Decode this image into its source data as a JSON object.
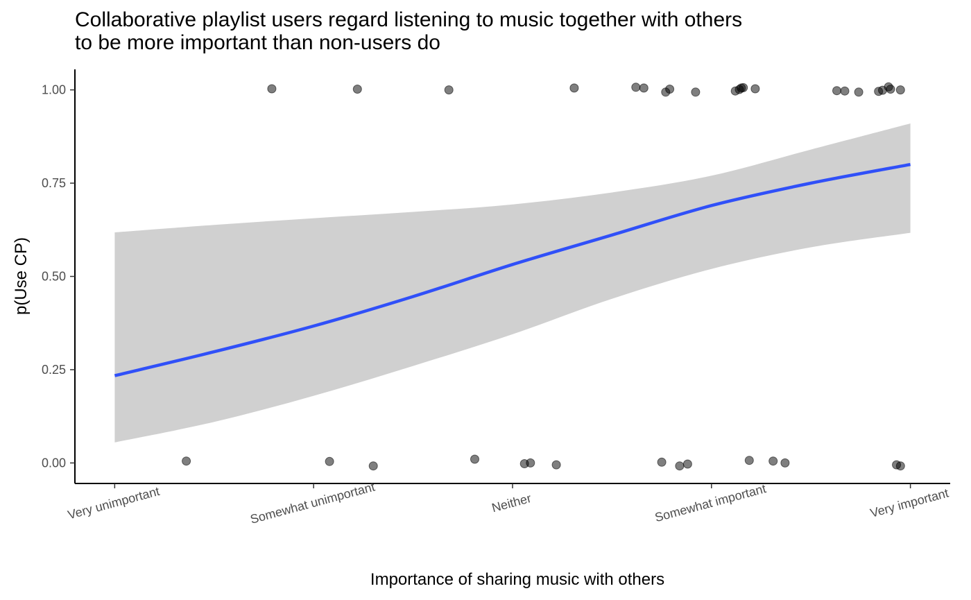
{
  "chart_data": {
    "type": "scatter",
    "title_line1": "Collaborative playlist users regard listening to music together with others",
    "title_line2": "to be more important than non-users do",
    "xlabel": "Importance of sharing music with others",
    "ylabel": "p(Use CP)",
    "x_categories": [
      "Very unimportant",
      "Somewhat unimportant",
      "Neither",
      "Somewhat important",
      "Very important"
    ],
    "y_ticks": [
      "0.00",
      "0.25",
      "0.50",
      "0.75",
      "1.00"
    ],
    "y_tick_values": [
      0,
      0.25,
      0.5,
      0.75,
      1
    ],
    "ylim": [
      -0.055,
      1.055
    ],
    "xlim": [
      0.8,
      5.2
    ],
    "grid": false,
    "legend": "none",
    "colors": {
      "fit_line": "#3050f8",
      "ribbon": "#d0d0d0",
      "points": "#000000",
      "axis": "#000000"
    },
    "points": [
      {
        "x": 1.79,
        "y": 1.003
      },
      {
        "x": 2.22,
        "y": 1.002
      },
      {
        "x": 2.68,
        "y": 1.0
      },
      {
        "x": 3.31,
        "y": 1.005
      },
      {
        "x": 3.62,
        "y": 1.007
      },
      {
        "x": 3.66,
        "y": 1.005
      },
      {
        "x": 3.77,
        "y": 0.994
      },
      {
        "x": 3.79,
        "y": 1.002
      },
      {
        "x": 3.92,
        "y": 0.994
      },
      {
        "x": 4.12,
        "y": 0.997
      },
      {
        "x": 4.14,
        "y": 1.001
      },
      {
        "x": 4.15,
        "y": 1.005
      },
      {
        "x": 4.16,
        "y": 1.006
      },
      {
        "x": 4.22,
        "y": 1.003
      },
      {
        "x": 4.63,
        "y": 0.998
      },
      {
        "x": 4.67,
        "y": 0.997
      },
      {
        "x": 4.74,
        "y": 0.994
      },
      {
        "x": 4.84,
        "y": 0.996
      },
      {
        "x": 4.86,
        "y": 0.999
      },
      {
        "x": 4.89,
        "y": 1.008
      },
      {
        "x": 4.9,
        "y": 1.002
      },
      {
        "x": 4.95,
        "y": 1.0
      },
      {
        "x": 1.36,
        "y": 0.005
      },
      {
        "x": 2.08,
        "y": 0.004
      },
      {
        "x": 2.3,
        "y": -0.008
      },
      {
        "x": 2.81,
        "y": 0.01
      },
      {
        "x": 3.06,
        "y": -0.002
      },
      {
        "x": 3.09,
        "y": 0.0
      },
      {
        "x": 3.22,
        "y": -0.005
      },
      {
        "x": 3.75,
        "y": 0.002
      },
      {
        "x": 3.84,
        "y": -0.008
      },
      {
        "x": 3.88,
        "y": -0.003
      },
      {
        "x": 4.19,
        "y": 0.007
      },
      {
        "x": 4.31,
        "y": 0.005
      },
      {
        "x": 4.37,
        "y": 0.0
      },
      {
        "x": 4.93,
        "y": -0.005
      },
      {
        "x": 4.95,
        "y": -0.008
      }
    ],
    "fit": {
      "x": [
        1,
        1.5,
        2,
        2.5,
        3,
        3.5,
        4,
        4.5,
        5
      ],
      "y": [
        0.234,
        0.298,
        0.367,
        0.446,
        0.532,
        0.611,
        0.69,
        0.75,
        0.8
      ],
      "lower": [
        0.055,
        0.11,
        0.18,
        0.26,
        0.345,
        0.44,
        0.52,
        0.578,
        0.617
      ],
      "upper": [
        0.618,
        0.638,
        0.656,
        0.673,
        0.693,
        0.725,
        0.77,
        0.84,
        0.91
      ]
    }
  }
}
